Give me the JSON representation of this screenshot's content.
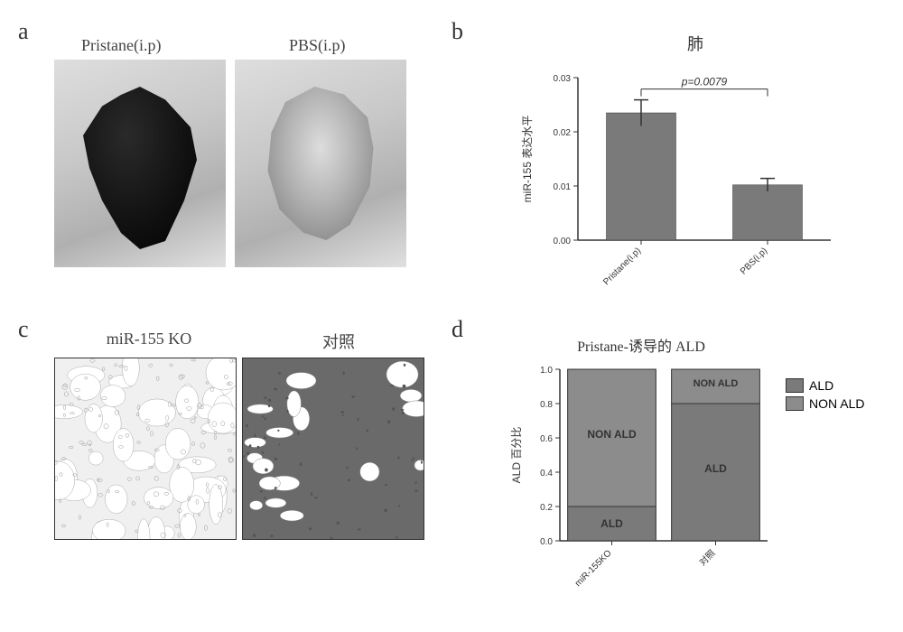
{
  "panel_a": {
    "label": "a",
    "left_caption": "Pristane(i.p)",
    "right_caption": "PBS(i.p)"
  },
  "panel_b": {
    "label": "b",
    "title": "肺",
    "ylabel": "miR-155 表达水平",
    "pvalue_text": "p=0.0079",
    "ylim": [
      0,
      0.03
    ],
    "yticks": [
      0.0,
      0.01,
      0.02,
      0.03
    ],
    "ytick_labels": [
      "0.00",
      "0.01",
      "0.02",
      "0.03"
    ],
    "categories": [
      "Pristane(i.p)",
      "PBS(i.p)"
    ],
    "values": [
      0.0235,
      0.0102
    ],
    "errors": [
      0.0024,
      0.0012
    ],
    "bar_color": "#7a7a7a",
    "axis_color": "#333333",
    "grid_color": "#cccccc",
    "bar_width": 0.55,
    "label_fontsize": 12,
    "tick_fontsize": 10
  },
  "panel_c": {
    "label": "c",
    "left_caption": "miR-155 KO",
    "right_caption": "对照"
  },
  "panel_d": {
    "label": "d",
    "title": "Pristane-诱导的 ALD",
    "ylabel": "ALD 百分比",
    "ylim": [
      0,
      1.0
    ],
    "yticks": [
      0.0,
      0.2,
      0.4,
      0.6,
      0.8,
      1.0
    ],
    "ytick_labels": [
      "0.0",
      "0.2",
      "0.4",
      "0.6",
      "0.8",
      "1.0"
    ],
    "categories": [
      "miR-155KO",
      "对照"
    ],
    "series": {
      "ALD": {
        "color": "#7a7a7a",
        "values": [
          0.2,
          0.8
        ]
      },
      "NON_ALD": {
        "color": "#8c8c8c",
        "values": [
          0.8,
          0.2
        ]
      }
    },
    "stack_order": [
      "ALD",
      "NON_ALD"
    ],
    "segment_labels": {
      "bar0_upper": "NON ALD",
      "bar0_lower": "ALD",
      "bar1_upper": "NON  ALD",
      "bar1_lower": "ALD"
    },
    "legend": [
      {
        "label": "ALD",
        "color": "#7a7a7a"
      },
      {
        "label": "NON ALD",
        "color": "#8c8c8c"
      }
    ],
    "bar_width": 0.85,
    "axis_color": "#333333",
    "label_fontsize": 12,
    "tick_fontsize": 10
  }
}
